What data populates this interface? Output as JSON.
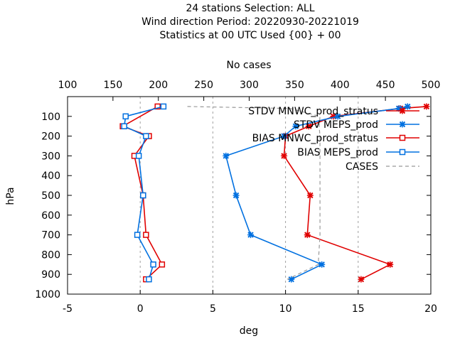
{
  "chart_data": {
    "type": "line",
    "title_lines": [
      "24 stations Selection: ALL",
      "Wind direction  Period: 20220930-20221019",
      "Statistics at 00 UTC  Used {00} + 00"
    ],
    "xlabel": "deg",
    "ylabel": "hPa",
    "x2label": "No cases",
    "xlim": [
      -5,
      20
    ],
    "ylim": [
      1000,
      0
    ],
    "x2lim": [
      100,
      500
    ],
    "xticks": [
      "-5",
      "0",
      "5",
      "10",
      "15",
      "20"
    ],
    "yticks": [
      "100",
      "200",
      "300",
      "400",
      "500",
      "600",
      "700",
      "800",
      "900",
      "1000"
    ],
    "x2ticks": [
      "100",
      "150",
      "200",
      "250",
      "300",
      "350",
      "400",
      "450",
      "500"
    ],
    "grid": "vertical dashed at x ticks",
    "legend_position": "top-right",
    "series": [
      {
        "name": "STDV MNWC_prod_stratus",
        "color": "#e00000",
        "marker": "x",
        "dash": "solid",
        "points": [
          [
            19.7,
            50
          ],
          [
            17.9,
            60
          ],
          [
            13.3,
            100
          ],
          [
            11.6,
            150
          ],
          [
            10.0,
            200
          ],
          [
            9.9,
            300
          ],
          [
            11.7,
            500
          ],
          [
            11.5,
            700
          ],
          [
            17.2,
            850
          ],
          [
            15.2,
            925
          ]
        ]
      },
      {
        "name": "STDV MEPS_prod",
        "color": "#0070e0",
        "marker": "x",
        "dash": "solid",
        "points": [
          [
            18.4,
            50
          ],
          [
            17.8,
            60
          ],
          [
            13.6,
            100
          ],
          [
            10.7,
            150
          ],
          [
            9.9,
            200
          ],
          [
            5.9,
            300
          ],
          [
            6.6,
            500
          ],
          [
            7.6,
            700
          ],
          [
            12.5,
            850
          ],
          [
            10.4,
            925
          ]
        ]
      },
      {
        "name": "BIAS MNWC_prod_stratus",
        "color": "#e00000",
        "marker": "square",
        "dash": "solid",
        "points": [
          [
            1.2,
            50
          ],
          [
            -1.2,
            150
          ],
          [
            0.6,
            200
          ],
          [
            -0.4,
            300
          ],
          [
            0.2,
            500
          ],
          [
            0.4,
            700
          ],
          [
            1.5,
            850
          ],
          [
            0.4,
            925
          ]
        ]
      },
      {
        "name": "BIAS MEPS_prod",
        "color": "#0070e0",
        "marker": "square",
        "dash": "solid",
        "points": [
          [
            1.6,
            50
          ],
          [
            -1.0,
            100
          ],
          [
            -1.1,
            150
          ],
          [
            0.4,
            200
          ],
          [
            -0.1,
            300
          ],
          [
            0.2,
            500
          ],
          [
            -0.2,
            700
          ],
          [
            0.9,
            850
          ],
          [
            0.6,
            925
          ]
        ]
      },
      {
        "name": "CASES",
        "color": "#999999",
        "marker": "none",
        "dash": "dashed",
        "axis": "x2",
        "points": [
          [
            232,
            50
          ],
          [
            345,
            60
          ],
          [
            378,
            100
          ],
          [
            377,
            150
          ],
          [
            378,
            200
          ],
          [
            378,
            300
          ],
          [
            378,
            500
          ],
          [
            378,
            700
          ],
          [
            376,
            850
          ],
          [
            342,
            925
          ]
        ]
      }
    ]
  }
}
